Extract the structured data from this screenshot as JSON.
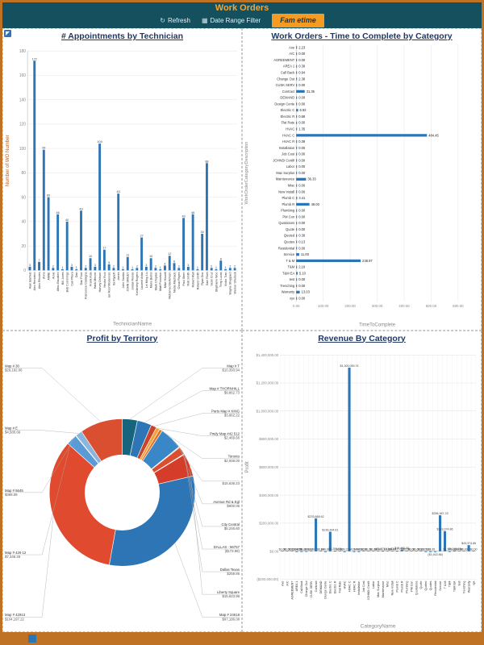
{
  "header": {
    "title": "Work Orders",
    "refresh_label": "Refresh",
    "date_filter_label": "Date Range Filter",
    "brand": "Fam etime",
    "colors": {
      "header_bg": "#15505f",
      "accent": "#f59b22",
      "bar_blue": "#2e75b6"
    }
  },
  "chart_data": [
    {
      "id": "appointments",
      "type": "bar",
      "title": "# Appointments by Technician",
      "xlabel": "TechnicianName",
      "ylabel": "Number of WO Number",
      "ylim": [
        0,
        180
      ],
      "ystep": 20,
      "grid": true,
      "bar_color": "#2e75b6",
      "categories": [
        "Alan Barfield",
        "Alex Rendeiro",
        "Alex Rhodes",
        "Anne",
        "ANNE",
        "Arnie",
        "Attou Bauakmi",
        "Bill Jones",
        "Bob Cummings",
        "Carl Pitera",
        "Dan",
        "Dan Price",
        "Francesca Castagna",
        "Frank Adia",
        "Hank Mercer",
        "Harvey Dirkson",
        "Hector Ruiz",
        "Ian Roof Modernize",
        "Ita Riyadh",
        "James",
        "John Santos",
        "JOHN SMILEY",
        "Jordan Reese",
        "Kimberley Rogers",
        "Laurent Anba",
        "Lei Ming Liu",
        "Mario Bellini",
        "Mark Chrysler",
        "Matt Princeton",
        "Mike Hiscott",
        "Mohamed Bellehsen",
        "Nadia Machado",
        "Oscar Reyes",
        "Paul Stern",
        "Rob Smith",
        "Robert Wall",
        "Roland Smith",
        "Ryan Dior",
        "Sam Rivet",
        "Sean Cruz",
        "Stephanie Woo",
        "Terry Lucas",
        "Victor Tran",
        "Wayne Sheppard",
        "Werner Sherlock"
      ],
      "values": [
        3,
        172,
        7,
        99,
        60,
        2,
        46,
        1,
        40,
        3,
        1,
        49,
        2,
        10,
        3,
        104,
        17,
        5,
        2,
        63,
        1,
        11,
        1,
        2,
        27,
        3,
        10,
        2,
        1,
        4,
        12,
        6,
        2,
        43,
        3,
        46,
        1,
        30,
        88,
        2,
        1,
        8,
        1,
        2,
        2
      ]
    },
    {
      "id": "time_by_category",
      "type": "bar",
      "orientation": "horizontal",
      "title": "Work Orders - Time to Complete by Category",
      "xlabel": "TimeToComplete",
      "ylabel": "WorkOrderCategoryDescription",
      "xlim": [
        0,
        600
      ],
      "xstep": 100,
      "grid": true,
      "bar_color": "#2e75b6",
      "categories": [
        "Axe",
        "A/C",
        "AGREEMENT",
        "AREA 1",
        "Call Back",
        "Change Out",
        "CUSK SERV",
        "Contract",
        "DEMAND",
        "Design Cente",
        "Electric C",
        "Electric R",
        "Flat Rate",
        "HVAC",
        "HVAC C",
        "HVAC R",
        "Installation",
        "Job Cost",
        "JOHNDi Certifi",
        "Labor",
        "Mac Surplus",
        "Maintenance",
        "Misc",
        "New Install",
        "Plumb C",
        "Plumb R",
        "Plumbing",
        "PM Con",
        "Quotations",
        "Quote",
        "Quoted",
        "Quotes",
        "Residential",
        "Service",
        "T & M",
        "T&M",
        "T&M EA",
        "test",
        "Trenching",
        "Warranty",
        "xyx"
      ],
      "values": [
        2.23,
        0,
        0,
        0.39,
        0.94,
        2.38,
        0,
        31.35,
        0,
        0,
        6.92,
        0.68,
        0,
        1.35,
        484.45,
        0.39,
        0,
        0,
        0,
        0,
        0,
        36.33,
        0,
        0,
        3.41,
        49.0,
        0,
        0,
        0,
        0,
        0.39,
        0.13,
        0,
        11.0,
        238.97,
        2.19,
        5.1,
        0,
        0,
        13.03,
        0
      ]
    },
    {
      "id": "profit_by_territory",
      "type": "pie",
      "title": "Profit by Territory",
      "donut": true,
      "slices": [
        {
          "name": "Map # T",
          "value": 10393.94,
          "label": "$10,393.94",
          "color": "#17657d"
        },
        {
          "name": "Map # THORNHILL",
          "value": 9862.73,
          "label": "$9,862.73",
          "color": "#2e75b6"
        },
        {
          "name": "Parts Map # KING",
          "value": 3862.22,
          "label": "$3,862.22",
          "color": "#c9452a"
        },
        {
          "name": "Pwdy Map #42 512",
          "value": 2469.66,
          "label": "$2,469.66",
          "color": "#f2a23b"
        },
        {
          "name": "Toronto",
          "value": 2008.0,
          "label": "$2,008.00",
          "color": "#e8711f"
        },
        {
          "name": "",
          "value": 15636.23,
          "label": "$15,636.23",
          "color": "#3a87c8"
        },
        {
          "name": "Avenue Rd & Egl",
          "value": 600.06,
          "label": "$600.06",
          "color": "#f4b97f"
        },
        {
          "name": "City Central",
          "value": 5246.6,
          "label": "$5,246.60",
          "color": "#d94f30"
        },
        {
          "name": "DALLAS - 56757",
          "value": -173.98,
          "label": "($173.98)",
          "color": "#9dc3e6"
        },
        {
          "name": "Dallas Texas",
          "value": 259.86,
          "label": "$259.86",
          "color": "#b02418"
        },
        {
          "name": "Liberty Square",
          "value": 15623.98,
          "label": "$15,623.98",
          "color": "#d43d2a"
        },
        {
          "name": "Map # 24618",
          "value": 97186.08,
          "label": "$97,186.08",
          "color": "#2e75b6"
        },
        {
          "name": "Map # 42913",
          "value": 104197.22,
          "label": "$104,197.22",
          "color": "#e04b2f"
        },
        {
          "name": "Map # 429 12",
          "value": 7346.28,
          "label": "$7,346.28",
          "color": "#5b9bd5"
        },
        {
          "name": "Map # 5645",
          "value": 369.09,
          "label": "$369.09",
          "color": "#ed7d31"
        },
        {
          "name": "Map # E",
          "value": 4585.66,
          "label": "$4,585.66",
          "color": "#8ab6dd"
        },
        {
          "name": "Map # 30",
          "value": 29192.06,
          "label": "$29,192.06",
          "color": "#d94f30"
        }
      ]
    },
    {
      "id": "revenue_by_category",
      "type": "bar",
      "title": "Revenue By Category",
      "xlabel": "CategoryName",
      "ylabel": "Profit",
      "ylim": [
        -200000,
        1400000
      ],
      "ystep": 200000,
      "grid": true,
      "bar_color": "#2e75b6",
      "categories": [
        "Axe",
        "A/C",
        "AGREEMENT",
        "AREA 1",
        "Call Back",
        "Change Out",
        "CUSK SERV",
        "Contract",
        "DEMAND",
        "Design Cente",
        "Electric C",
        "Electric R",
        "Flat Rate",
        "HVAC",
        "HVAC C",
        "HVAC R",
        "Installation",
        "Job Cost",
        "JOHNDi Certifi",
        "Labor",
        "Mac Surplus",
        "Maintenance",
        "Misc",
        "New Install",
        "Plumb C",
        "Plumb R",
        "Plumbing",
        "PM Con",
        "Quotations",
        "Quote",
        "Quoted",
        "Quotes",
        "Residential",
        "Service",
        "T & M",
        "T&M",
        "T&M EA",
        "test",
        "Trenching",
        "Warranty",
        "xyx"
      ],
      "values": [
        0,
        0,
        0,
        164.54,
        628.08,
        1390.0,
        0,
        233888.62,
        0,
        49.0,
        139444.61,
        4280.08,
        0,
        29.22,
        1309059.74,
        417.48,
        474.96,
        0,
        0,
        0,
        0,
        4927.41,
        0,
        0,
        3417.96,
        10490.0,
        0,
        0,
        0,
        0,
        115.0,
        13.95,
        -1402.86,
        256367.23,
        143374.86,
        1195.0,
        5110.0,
        0,
        0,
        43374.86,
        0
      ]
    }
  ]
}
